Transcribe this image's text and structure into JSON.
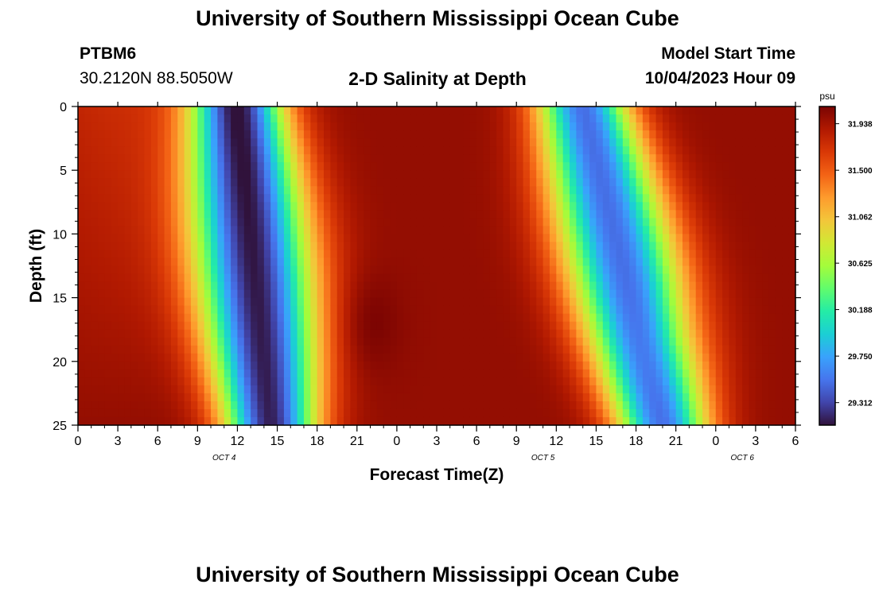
{
  "header": {
    "title": "University of Southern Mississippi Ocean Cube",
    "station": "PTBM6",
    "coords": "30.2120N  88.5050W",
    "center_title": "2-D Salinity at Depth",
    "model_start_label": "Model Start Time",
    "model_start_value": "10/04/2023 Hour 09"
  },
  "footer": {
    "title": "University of Southern Mississippi Ocean Cube"
  },
  "chart_data": {
    "type": "heatmap",
    "title": "2-D Salinity at Depth",
    "xlabel": "Forecast Time(Z)",
    "ylabel": "Depth (ft)",
    "x_ticks": [
      "0",
      "3",
      "6",
      "9",
      "12",
      "15",
      "18",
      "21",
      "0",
      "3",
      "6",
      "9",
      "12",
      "15",
      "18",
      "21",
      "0",
      "3",
      "6"
    ],
    "x_range_hours": [
      0,
      54
    ],
    "day_labels": [
      {
        "label": "OCT 4",
        "hour": 11
      },
      {
        "label": "OCT 5",
        "hour": 35
      },
      {
        "label": "OCT 6",
        "hour": 50
      }
    ],
    "y_ticks": [
      0,
      5,
      10,
      15,
      20,
      25
    ],
    "y_range": [
      0,
      25
    ],
    "y_inverted": true,
    "colorbar": {
      "unit": "psu",
      "min": 29.1,
      "max": 32.1,
      "ticks": [
        "31.938",
        "31.500",
        "31.062",
        "30.625",
        "30.188",
        "29.750",
        "29.312"
      ],
      "colors": [
        "#30123b",
        "#4145ab",
        "#4675ed",
        "#39a2fc",
        "#1bcfd4",
        "#24eca6",
        "#61fc6c",
        "#a4fc3b",
        "#d1e834",
        "#f3c63a",
        "#fe9b2d",
        "#f36315",
        "#d93806",
        "#b11901",
        "#7a0402"
      ]
    },
    "salinity_model": {
      "description": "salinity (psu) vs forecast hour and depth (ft); fresh band centers at 2 depths",
      "fresh_bands": [
        {
          "top_center_hour": 12,
          "bottom_center_hour": 14.5,
          "half_width_hours": 3.5,
          "min": 29.15
        },
        {
          "top_center_hour": 38,
          "bottom_center_hour": 44,
          "half_width_hours": 3.5,
          "min": 29.5
        }
      ],
      "salty_max": 32.0
    }
  }
}
